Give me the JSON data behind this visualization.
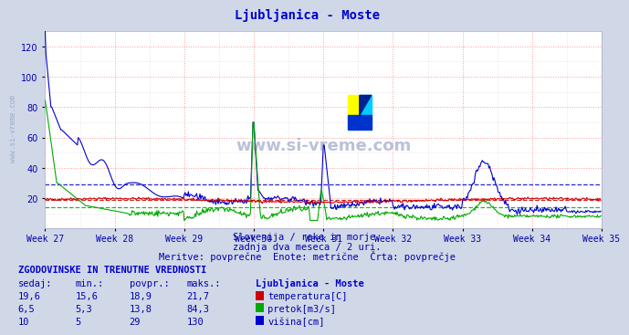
{
  "title": "Ljubljanica - Moste",
  "title_color": "#0000cc",
  "bg_color": "#d0d8e8",
  "plot_bg_color": "#ffffff",
  "grid_color_major": "#ff9999",
  "grid_color_minor": "#ddaaaa",
  "xlim": [
    0,
    672
  ],
  "ylim": [
    0,
    130
  ],
  "yticks": [
    20,
    40,
    60,
    80,
    100,
    120
  ],
  "week_labels": [
    "Week 27",
    "Week 28",
    "Week 29",
    "Week 30",
    "Week 31",
    "Week 32",
    "Week 33",
    "Week 34",
    "Week 35"
  ],
  "week_positions": [
    0,
    84,
    168,
    252,
    336,
    420,
    504,
    588,
    672
  ],
  "subtitle1": "Slovenija / reke in morje.",
  "subtitle2": "zadnja dva meseca / 2 uri.",
  "subtitle3": "Meritve: povprečne  Enote: metrične  Črta: povprečje",
  "footer_title": "ZGODOVINSKE IN TRENUTNE VREDNOSTI",
  "col_headers": [
    "sedaj:",
    "min.:",
    "povpr.:",
    "maks.:"
  ],
  "rows": [
    {
      "sedaj": "19,6",
      "min": "15,6",
      "povpr": "18,9",
      "maks": "21,7",
      "label": "temperatura[C]",
      "color": "#cc0000"
    },
    {
      "sedaj": "6,5",
      "min": "5,3",
      "povpr": "13,8",
      "maks": "84,3",
      "label": "pretok[m3/s]",
      "color": "#00aa00"
    },
    {
      "sedaj": "10",
      "min": "5",
      "povpr": "29",
      "maks": "130",
      "label": "višina[cm]",
      "color": "#0000cc"
    }
  ],
  "temp_avg": 18.9,
  "pretok_avg": 13.8,
  "visina_avg": 29,
  "watermark_color": "#6677aa",
  "watermark_text": "www.si-vreme.com",
  "watermark_side": "www.si-vreme.com"
}
